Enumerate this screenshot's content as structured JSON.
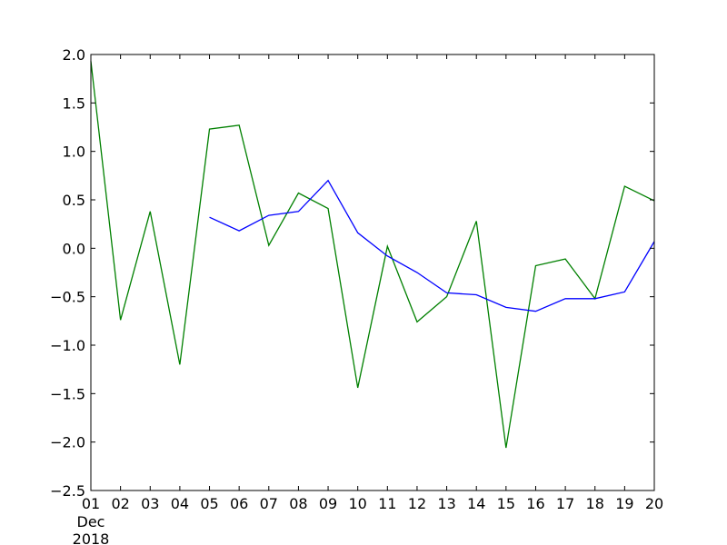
{
  "chart_data": {
    "type": "line",
    "x": [
      "01",
      "02",
      "03",
      "04",
      "05",
      "06",
      "07",
      "08",
      "09",
      "10",
      "11",
      "12",
      "13",
      "14",
      "15",
      "16",
      "17",
      "18",
      "19",
      "20"
    ],
    "x_sublabels": [
      "Dec",
      "2018"
    ],
    "ylim": [
      -2.5,
      2.0
    ],
    "yticks": [
      "−2.5",
      "−2.0",
      "−1.5",
      "−1.0",
      "−0.5",
      "0.0",
      "0.5",
      "1.0",
      "1.5",
      "2.0"
    ],
    "ytick_values": [
      -2.5,
      -2.0,
      -1.5,
      -1.0,
      -0.5,
      0.0,
      0.5,
      1.0,
      1.5,
      2.0
    ],
    "grid": false,
    "series": [
      {
        "color": "#008000",
        "values": [
          1.93,
          -0.74,
          0.38,
          -1.2,
          1.23,
          1.27,
          0.03,
          0.57,
          0.41,
          -1.44,
          0.02,
          -0.76,
          -0.5,
          0.28,
          -2.06,
          -0.18,
          -0.11,
          -0.52,
          0.64,
          0.49
        ]
      },
      {
        "color": "#0000ff",
        "values": [
          null,
          null,
          null,
          null,
          0.32,
          0.18,
          0.34,
          0.38,
          0.7,
          0.16,
          -0.08,
          -0.25,
          -0.46,
          -0.48,
          -0.61,
          -0.65,
          -0.52,
          -0.52,
          -0.45,
          0.07
        ]
      }
    ]
  }
}
